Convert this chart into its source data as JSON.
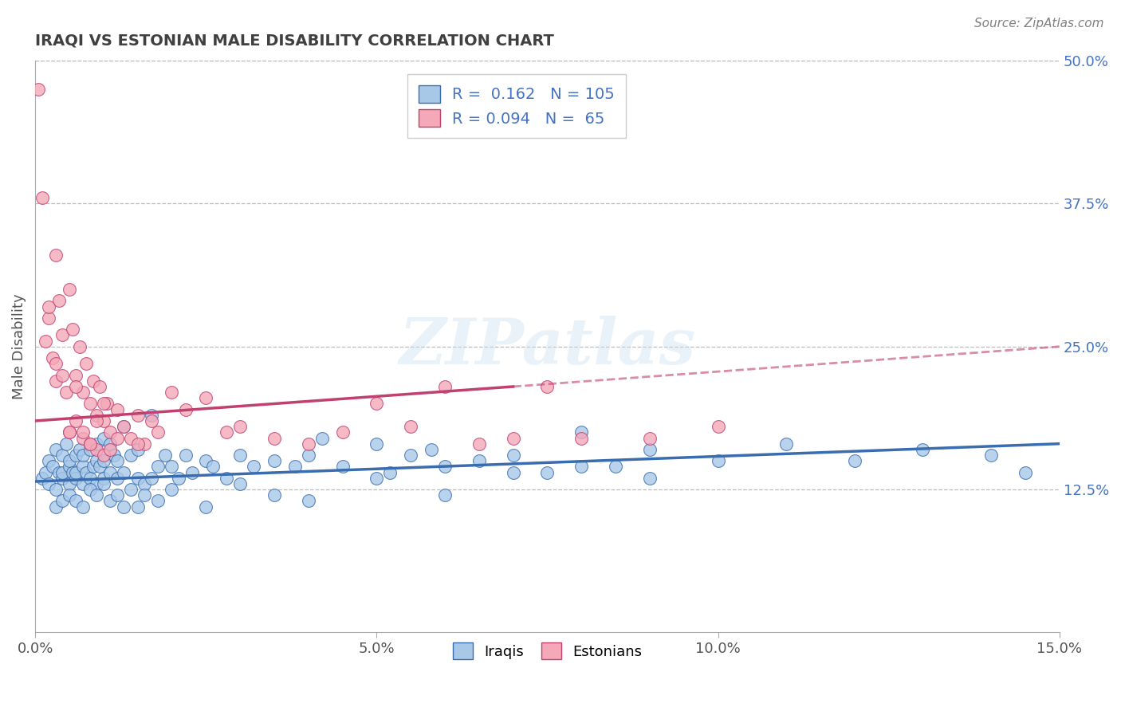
{
  "title": "IRAQI VS ESTONIAN MALE DISABILITY CORRELATION CHART",
  "source_text": "Source: ZipAtlas.com",
  "xlabel_vals": [
    0.0,
    5.0,
    10.0,
    15.0
  ],
  "ylabel_vals_right": [
    12.5,
    25.0,
    37.5,
    50.0
  ],
  "ylabel_label": "Male Disability",
  "legend_label_iraqis": "Iraqis",
  "legend_label_estonians": "Estonians",
  "iraqi_R": 0.162,
  "iraqi_N": 105,
  "estonian_R": 0.094,
  "estonian_N": 65,
  "iraqi_color": "#a8c8e8",
  "estonian_color": "#f4a8b8",
  "iraqi_line_color": "#3a6cb0",
  "estonian_line_color": "#c04070",
  "background_color": "#ffffff",
  "grid_color": "#bbbbbb",
  "title_color": "#404040",
  "source_color": "#808080",
  "xmin": 0.0,
  "xmax": 15.0,
  "ymin": 0.0,
  "ymax": 50.0,
  "iraqi_x": [
    0.1,
    0.15,
    0.2,
    0.2,
    0.25,
    0.3,
    0.3,
    0.35,
    0.4,
    0.4,
    0.4,
    0.45,
    0.5,
    0.5,
    0.5,
    0.55,
    0.6,
    0.6,
    0.6,
    0.65,
    0.7,
    0.7,
    0.7,
    0.75,
    0.8,
    0.8,
    0.85,
    0.9,
    0.9,
    0.9,
    0.95,
    1.0,
    1.0,
    1.0,
    1.1,
    1.1,
    1.15,
    1.2,
    1.2,
    1.3,
    1.3,
    1.4,
    1.5,
    1.5,
    1.6,
    1.7,
    1.8,
    1.9,
    2.0,
    2.1,
    2.2,
    2.3,
    2.5,
    2.6,
    2.8,
    3.0,
    3.2,
    3.5,
    3.8,
    4.0,
    4.2,
    4.5,
    5.0,
    5.2,
    5.5,
    5.8,
    6.0,
    6.5,
    7.0,
    7.5,
    8.0,
    8.5,
    9.0,
    10.0,
    11.0,
    12.0,
    13.0,
    14.0,
    14.5,
    0.3,
    0.4,
    0.5,
    0.6,
    0.7,
    0.8,
    0.9,
    1.0,
    1.1,
    1.2,
    1.3,
    1.4,
    1.5,
    1.6,
    1.7,
    1.8,
    2.0,
    2.5,
    3.0,
    3.5,
    4.0,
    5.0,
    6.0,
    7.0,
    8.0,
    9.0
  ],
  "iraqi_y": [
    13.5,
    14.0,
    13.0,
    15.0,
    14.5,
    12.5,
    16.0,
    14.0,
    13.5,
    15.5,
    14.0,
    16.5,
    13.0,
    14.5,
    15.0,
    14.0,
    13.5,
    15.5,
    14.0,
    16.0,
    13.0,
    14.5,
    15.5,
    14.0,
    13.5,
    16.0,
    14.5,
    13.0,
    15.0,
    16.5,
    14.5,
    13.5,
    15.0,
    17.0,
    14.0,
    16.5,
    15.5,
    13.5,
    15.0,
    14.0,
    18.0,
    15.5,
    13.5,
    16.0,
    13.0,
    19.0,
    14.5,
    15.5,
    14.5,
    13.5,
    15.5,
    14.0,
    15.0,
    14.5,
    13.5,
    15.5,
    14.5,
    15.0,
    14.5,
    15.5,
    17.0,
    14.5,
    16.5,
    14.0,
    15.5,
    16.0,
    14.5,
    15.0,
    15.5,
    14.0,
    17.5,
    14.5,
    16.0,
    15.0,
    16.5,
    15.0,
    16.0,
    15.5,
    14.0,
    11.0,
    11.5,
    12.0,
    11.5,
    11.0,
    12.5,
    12.0,
    13.0,
    11.5,
    12.0,
    11.0,
    12.5,
    11.0,
    12.0,
    13.5,
    11.5,
    12.5,
    11.0,
    13.0,
    12.0,
    11.5,
    13.5,
    12.0,
    14.0,
    14.5,
    13.5
  ],
  "estonian_x": [
    0.05,
    0.1,
    0.15,
    0.2,
    0.25,
    0.3,
    0.3,
    0.35,
    0.4,
    0.45,
    0.5,
    0.5,
    0.55,
    0.6,
    0.6,
    0.65,
    0.7,
    0.7,
    0.75,
    0.8,
    0.8,
    0.85,
    0.9,
    0.9,
    0.95,
    1.0,
    1.0,
    1.05,
    1.1,
    1.2,
    1.3,
    1.4,
    1.5,
    1.6,
    1.7,
    1.8,
    2.0,
    2.2,
    2.5,
    2.8,
    3.0,
    3.5,
    4.0,
    4.5,
    5.0,
    5.5,
    6.0,
    6.5,
    7.0,
    7.5,
    8.0,
    9.0,
    10.0,
    0.2,
    0.3,
    0.4,
    0.5,
    0.6,
    0.7,
    0.8,
    0.9,
    1.0,
    1.1,
    1.2,
    1.5
  ],
  "estonian_y": [
    47.5,
    38.0,
    25.5,
    27.5,
    24.0,
    33.0,
    22.0,
    29.0,
    26.0,
    21.0,
    30.0,
    17.5,
    26.5,
    22.5,
    18.5,
    25.0,
    21.0,
    17.0,
    23.5,
    20.0,
    16.5,
    22.0,
    19.0,
    16.0,
    21.5,
    18.5,
    15.5,
    20.0,
    17.5,
    19.5,
    18.0,
    17.0,
    19.0,
    16.5,
    18.5,
    17.5,
    21.0,
    19.5,
    20.5,
    17.5,
    18.0,
    17.0,
    16.5,
    17.5,
    20.0,
    18.0,
    21.5,
    16.5,
    17.0,
    21.5,
    17.0,
    17.0,
    18.0,
    28.5,
    23.5,
    22.5,
    17.5,
    21.5,
    17.5,
    16.5,
    18.5,
    20.0,
    16.0,
    17.0,
    16.5
  ],
  "iraqi_trend_x0": 0.0,
  "iraqi_trend_y0": 13.2,
  "iraqi_trend_x1": 15.0,
  "iraqi_trend_y1": 16.5,
  "estonian_solid_x0": 0.0,
  "estonian_solid_y0": 18.5,
  "estonian_solid_x1": 7.0,
  "estonian_solid_y1": 21.5,
  "estonian_dash_x0": 7.0,
  "estonian_dash_y0": 21.5,
  "estonian_dash_x1": 15.0,
  "estonian_dash_y1": 25.0
}
